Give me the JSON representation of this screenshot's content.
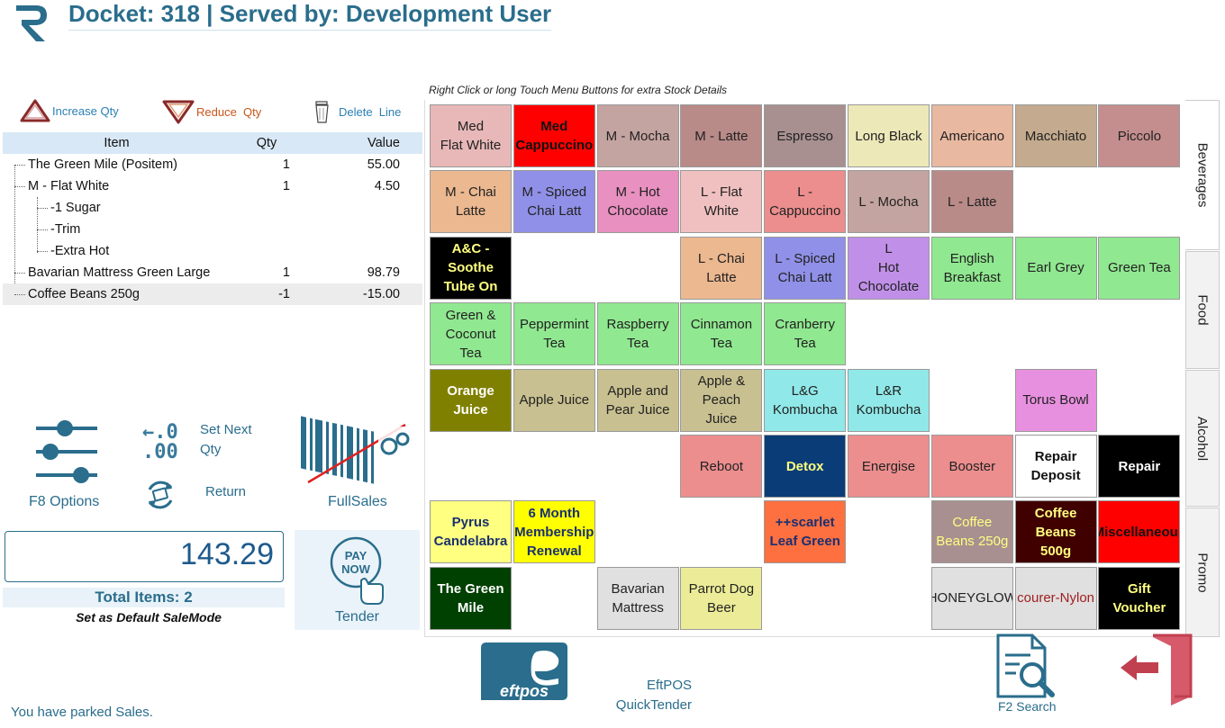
{
  "header": {
    "title": "Docket: 318 | Served by: Development User"
  },
  "controls": {
    "increase_qty": "Increase Qty",
    "reduce_qty": "Reduce  Qty",
    "delete_line": "Delete  Line"
  },
  "order": {
    "columns": [
      "Item",
      "Qty",
      "Value"
    ],
    "rows": [
      {
        "name": "The Green Mile (Positem)",
        "qty": "1",
        "value": "55.00"
      },
      {
        "name": "M - Flat White",
        "qty": "1",
        "value": "4.50"
      },
      {
        "name": "-1 Sugar",
        "qty": "",
        "value": ""
      },
      {
        "name": "-Trim",
        "qty": "",
        "value": ""
      },
      {
        "name": "-Extra Hot",
        "qty": "",
        "value": ""
      },
      {
        "name": "Bavarian Mattress Green Large",
        "qty": "1",
        "value": "98.79"
      },
      {
        "name": "Coffee Beans 250g",
        "qty": "-1",
        "value": "-15.00"
      }
    ]
  },
  "tools": {
    "options": "F8 Options",
    "set_next_qty": "Set Next Qty",
    "set_next_icon_top": "←.0",
    "set_next_icon_bottom": ".00",
    "return": "Return",
    "full_sales": "FullSales"
  },
  "totals": {
    "amount": "143.29",
    "items": "Total Items: 2",
    "default_mode": "Set as Default SaleMode",
    "tender": "Tender",
    "pay_now_top": "PAY",
    "pay_now_bottom": "NOW"
  },
  "status": {
    "parked": "You have parked Sales."
  },
  "grid": {
    "hint": "Right Click or long Touch Menu Buttons for extra Stock Details",
    "tiles": [
      {
        "lines": [
          "Med",
          "Flat White"
        ],
        "bg": "#e8b8b8",
        "fg": "#222"
      },
      {
        "lines": [
          "Med",
          "Cappuccino"
        ],
        "bg": "#ff0000",
        "fg": "#111",
        "bold": true
      },
      {
        "lines": [
          "M - Mocha"
        ],
        "bg": "#c4a4a0",
        "fg": "#222"
      },
      {
        "lines": [
          "M - Latte"
        ],
        "bg": "#b88a88",
        "fg": "#222"
      },
      {
        "lines": [
          "Espresso"
        ],
        "bg": "#a89090",
        "fg": "#222"
      },
      {
        "lines": [
          "Long Black"
        ],
        "bg": "#ede8b8",
        "fg": "#222"
      },
      {
        "lines": [
          "Americano"
        ],
        "bg": "#e8b8a0",
        "fg": "#222"
      },
      {
        "lines": [
          "Macchiato"
        ],
        "bg": "#c4aa8e",
        "fg": "#222"
      },
      {
        "lines": [
          "Piccolo"
        ],
        "bg": "#c48e8e",
        "fg": "#222"
      },
      {
        "lines": [
          "M - Chai",
          "Latte"
        ],
        "bg": "#ecb890",
        "fg": "#222"
      },
      {
        "lines": [
          "M - Spiced",
          "Chai Latt"
        ],
        "bg": "#9090e8",
        "fg": "#222"
      },
      {
        "lines": [
          "M - Hot",
          "Chocolate"
        ],
        "bg": "#e890c0",
        "fg": "#222"
      },
      {
        "lines": [
          "L - Flat",
          "White"
        ],
        "bg": "#f0c0c0",
        "fg": "#222"
      },
      {
        "lines": [
          "L -",
          "Cappuccino"
        ],
        "bg": "#ec8e8e",
        "fg": "#222"
      },
      {
        "lines": [
          "L - Mocha"
        ],
        "bg": "#c4a4a0",
        "fg": "#222"
      },
      {
        "lines": [
          "L - Latte"
        ],
        "bg": "#b88a88",
        "fg": "#222"
      },
      {
        "lines": [
          "A&C -",
          "Soothe",
          "Tube On"
        ],
        "bg": "#000000",
        "fg": "#ffff80",
        "bold": true
      },
      {
        "lines": [
          "L - Chai",
          "Latte"
        ],
        "bg": "#ecb890",
        "fg": "#222"
      },
      {
        "lines": [
          "L - Spiced",
          "Chai Latt"
        ],
        "bg": "#9090e8",
        "fg": "#222"
      },
      {
        "lines": [
          "L",
          "Hot",
          "Chocolate"
        ],
        "bg": "#c090e8",
        "fg": "#222"
      },
      {
        "lines": [
          "English",
          "Breakfast"
        ],
        "bg": "#90e890",
        "fg": "#222"
      },
      {
        "lines": [
          "Earl Grey"
        ],
        "bg": "#90e890",
        "fg": "#222"
      },
      {
        "lines": [
          "Green Tea"
        ],
        "bg": "#90e890",
        "fg": "#222"
      },
      {
        "lines": [
          "Green &",
          "Coconut",
          "Tea"
        ],
        "bg": "#90e890",
        "fg": "#222"
      },
      {
        "lines": [
          "Peppermint",
          "Tea"
        ],
        "bg": "#90e890",
        "fg": "#222"
      },
      {
        "lines": [
          "Raspberry",
          "Tea"
        ],
        "bg": "#90e890",
        "fg": "#222"
      },
      {
        "lines": [
          "Cinnamon",
          "Tea"
        ],
        "bg": "#90e890",
        "fg": "#222"
      },
      {
        "lines": [
          "Cranberry",
          "Tea"
        ],
        "bg": "#90e890",
        "fg": "#222"
      },
      {
        "lines": [
          "Orange",
          "Juice"
        ],
        "bg": "#808000",
        "fg": "#ffffff",
        "bold": true
      },
      {
        "lines": [
          "Apple Juice"
        ],
        "bg": "#c8c090",
        "fg": "#222"
      },
      {
        "lines": [
          "Apple and",
          "Pear Juice"
        ],
        "bg": "#c8c090",
        "fg": "#222"
      },
      {
        "lines": [
          "Apple &",
          "Peach",
          "Juice"
        ],
        "bg": "#c8c090",
        "fg": "#222"
      },
      {
        "lines": [
          "L&G",
          "Kombucha"
        ],
        "bg": "#90e8e8",
        "fg": "#222"
      },
      {
        "lines": [
          "L&R",
          "Kombucha"
        ],
        "bg": "#90e8e8",
        "fg": "#222"
      },
      {
        "lines": [
          "Torus Bowl"
        ],
        "bg": "#e890e0",
        "fg": "#222"
      },
      {
        "lines": [
          "Reboot"
        ],
        "bg": "#ec8e8e",
        "fg": "#222"
      },
      {
        "lines": [
          "Detox"
        ],
        "bg": "#0a3c78",
        "fg": "#ffff80",
        "bold": true
      },
      {
        "lines": [
          "Energise"
        ],
        "bg": "#ec8e8e",
        "fg": "#222"
      },
      {
        "lines": [
          "Booster"
        ],
        "bg": "#ec8e8e",
        "fg": "#222"
      },
      {
        "lines": [
          "Repair",
          "Deposit"
        ],
        "bg": "#ffffff",
        "fg": "#111",
        "bold": true
      },
      {
        "lines": [
          "Repair"
        ],
        "bg": "#000000",
        "fg": "#ffffff",
        "bold": true
      },
      {
        "lines": [
          "Pyrus",
          "Candelabra"
        ],
        "bg": "#ffff80",
        "fg": "#1a3070",
        "bold": true
      },
      {
        "lines": [
          "6 Month",
          "Membership",
          "Renewal"
        ],
        "bg": "#ffff00",
        "fg": "#1a3070",
        "bold": true
      },
      {
        "lines": [
          "++scarlet",
          "Leaf Green"
        ],
        "bg": "#ff7040",
        "fg": "#1a3070",
        "bold": true
      },
      {
        "lines": [
          "Coffee",
          "Beans 250g"
        ],
        "bg": "#a89090",
        "fg": "#ffff80"
      },
      {
        "lines": [
          "Coffee",
          "Beans",
          "500g"
        ],
        "bg": "#400000",
        "fg": "#ffff80",
        "bold": true
      },
      {
        "lines": [
          "Miscellaneous"
        ],
        "bg": "#ff0000",
        "fg": "#111",
        "bold": true
      },
      {
        "lines": [
          "The Green",
          "Mile"
        ],
        "bg": "#004000",
        "fg": "#ffffff",
        "bold": true
      },
      {
        "lines": [
          "Bavarian",
          "Mattress"
        ],
        "bg": "#e0e0e0",
        "fg": "#222"
      },
      {
        "lines": [
          "Parrot Dog",
          "Beer"
        ],
        "bg": "#ecec98",
        "fg": "#222"
      },
      {
        "lines": [
          "HONEYGLOW"
        ],
        "bg": "#e0e0e0",
        "fg": "#222"
      },
      {
        "lines": [
          "courer-Nylon"
        ],
        "bg": "#e0e0e0",
        "fg": "#a02020"
      },
      {
        "lines": [
          "Gift",
          "Voucher"
        ],
        "bg": "#000000",
        "fg": "#ffff80",
        "bold": true
      }
    ]
  },
  "tabs": [
    "Beverages",
    "Food",
    "Alcohol",
    "Promo"
  ],
  "bottom": {
    "eftpos_logo": "eftpos",
    "eftpos_quick": "EftPOS QuickTender",
    "f2_search": "F2 Search"
  },
  "colors": {
    "accent": "#2a6d8c",
    "header_row": "#d8e8f6",
    "total_text": "#1e5a8c"
  }
}
